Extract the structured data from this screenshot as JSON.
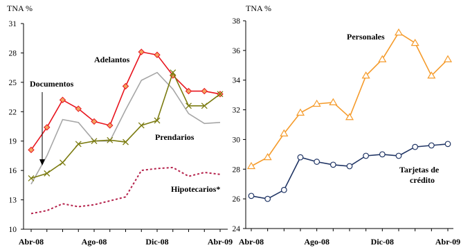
{
  "chart_data": [
    {
      "type": "line",
      "ylabel": "TNA %",
      "ylim": [
        10,
        31
      ],
      "yticks": [
        10,
        13,
        16,
        19,
        22,
        25,
        28,
        31
      ],
      "x": [
        "Abr-08",
        "May-08",
        "Jun-08",
        "Jul-08",
        "Ago-08",
        "Sep-08",
        "Oct-08",
        "Nov-08",
        "Dic-08",
        "Ene-09",
        "Feb-09",
        "Mar-09",
        "Abr-09"
      ],
      "xtick_labels": [
        "Abr-08",
        "Ago-08",
        "Dic-08",
        "Abr-09"
      ],
      "xtick_positions": [
        0,
        4,
        8,
        12
      ],
      "grid": false,
      "series": [
        {
          "name": "Adelantos",
          "color": "#e8141e",
          "style": "diamond",
          "values": [
            18.1,
            20.4,
            23.2,
            22.3,
            21.0,
            20.6,
            24.6,
            28.1,
            27.8,
            25.7,
            24.1,
            24.1,
            23.8
          ]
        },
        {
          "name": "Documentos",
          "color": "#a6a6a6",
          "style": "plain",
          "values": [
            14.6,
            17.5,
            21.2,
            20.9,
            19.0,
            19.0,
            22.2,
            25.2,
            26.0,
            24.3,
            21.8,
            20.8,
            20.9
          ]
        },
        {
          "name": "Prendarios",
          "color": "#7b7b10",
          "style": "x",
          "values": [
            15.2,
            15.7,
            16.8,
            18.7,
            19.0,
            19.1,
            18.9,
            20.6,
            21.1,
            26.0,
            22.6,
            22.6,
            23.8
          ]
        },
        {
          "name": "Hipotecarios*",
          "color": "#b4204a",
          "style": "dashed",
          "values": [
            11.6,
            11.9,
            12.6,
            12.3,
            12.5,
            12.9,
            13.3,
            16.0,
            16.2,
            16.3,
            15.4,
            15.8,
            15.6
          ]
        }
      ]
    },
    {
      "type": "line",
      "ylabel": "TNA %",
      "ylim": [
        24,
        38
      ],
      "yticks": [
        24,
        26,
        28,
        30,
        32,
        34,
        36,
        38
      ],
      "x": [
        "Abr-08",
        "May-08",
        "Jun-08",
        "Jul-08",
        "Ago-08",
        "Sep-08",
        "Oct-08",
        "Nov-08",
        "Dic-08",
        "Ene-09",
        "Feb-09",
        "Mar-09",
        "Abr-09"
      ],
      "xtick_labels": [
        "Abr-08",
        "Ago-08",
        "Dic-08",
        "Abr-09"
      ],
      "xtick_positions": [
        0,
        4,
        8,
        12
      ],
      "grid": false,
      "series": [
        {
          "name": "Personales",
          "color": "#f59b2b",
          "style": "triangle",
          "values": [
            28.2,
            28.8,
            30.4,
            31.8,
            32.4,
            32.5,
            31.5,
            34.3,
            35.4,
            37.2,
            36.5,
            34.3,
            35.4
          ]
        },
        {
          "name": "Tarjetas de crédito",
          "color": "#1f3464",
          "style": "circle",
          "values": [
            26.2,
            26.0,
            26.6,
            28.8,
            28.5,
            28.3,
            28.2,
            28.9,
            29.0,
            28.9,
            29.5,
            29.6,
            29.7
          ]
        }
      ]
    }
  ],
  "annotations": {
    "left": {
      "adelantos": "Adelantos",
      "documentos": "Documentos",
      "prendarios": "Prendarios",
      "hipotecarios": "Hipotecarios*"
    },
    "right": {
      "personales": "Personales",
      "tarjetas_line1": "Tarjetas de",
      "tarjetas_line2": "crédito"
    }
  }
}
